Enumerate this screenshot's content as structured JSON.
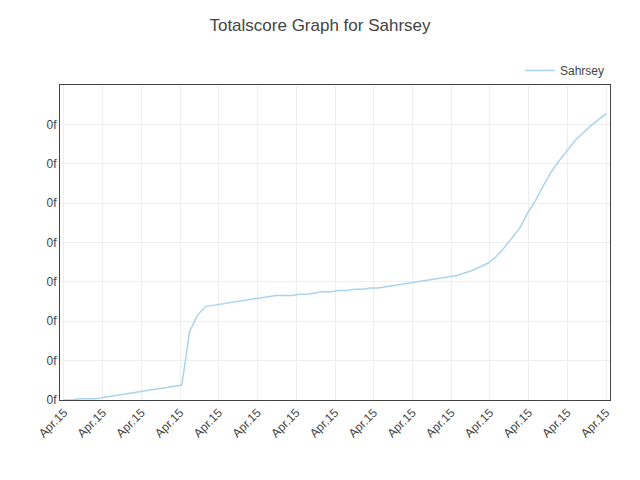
{
  "chart_data": {
    "type": "line",
    "title": "Totalscore Graph for Sahrsey",
    "x": [
      0,
      1,
      2,
      3,
      4,
      5,
      6,
      7,
      8,
      9,
      10,
      11,
      12,
      13,
      14,
      15,
      16,
      17,
      18,
      19,
      20,
      21,
      22,
      23,
      24,
      25,
      26,
      27,
      28,
      29,
      30,
      31,
      32,
      33,
      34,
      35,
      36,
      37,
      38,
      39,
      40,
      41,
      42,
      43,
      44,
      45,
      46,
      47,
      48,
      49,
      50,
      51,
      52,
      53,
      54,
      55,
      56,
      57,
      58,
      59,
      60,
      61,
      62,
      63,
      64,
      65,
      66,
      67,
      68,
      69
    ],
    "series": [
      {
        "name": "Sahrsey",
        "color": "#aad4ee",
        "values": [
          0,
          0,
          0.01,
          0.01,
          0.01,
          0.02,
          0.03,
          0.04,
          0.05,
          0.06,
          0.07,
          0.08,
          0.09,
          0.1,
          0.11,
          0.12,
          0.55,
          0.68,
          0.75,
          0.76,
          0.77,
          0.78,
          0.79,
          0.8,
          0.81,
          0.82,
          0.83,
          0.84,
          0.84,
          0.84,
          0.85,
          0.85,
          0.86,
          0.87,
          0.87,
          0.88,
          0.88,
          0.89,
          0.89,
          0.9,
          0.9,
          0.91,
          0.92,
          0.93,
          0.94,
          0.95,
          0.96,
          0.97,
          0.98,
          0.99,
          1.0,
          1.02,
          1.04,
          1.07,
          1.1,
          1.15,
          1.22,
          1.3,
          1.38,
          1.5,
          1.6,
          1.72,
          1.83,
          1.92,
          2.0,
          2.08,
          2.14,
          2.2,
          2.25,
          2.3
        ]
      }
    ],
    "xlim": [
      -0.5,
      69.5
    ],
    "xticks": [
      {
        "value": 0,
        "label": "Apr.15"
      },
      {
        "value": 4.928571428571429,
        "label": "Apr.15"
      },
      {
        "value": 9.857142857142858,
        "label": "Apr.15"
      },
      {
        "value": 14.785714285714286,
        "label": "Apr.15"
      },
      {
        "value": 19.714285714285715,
        "label": "Apr.15"
      },
      {
        "value": 24.642857142857142,
        "label": "Apr.15"
      },
      {
        "value": 29.571428571428573,
        "label": "Apr.15"
      },
      {
        "value": 34.5,
        "label": "Apr.15"
      },
      {
        "value": 39.42857142857143,
        "label": "Apr.15"
      },
      {
        "value": 44.357142857142854,
        "label": "Apr.15"
      },
      {
        "value": 49.285714285714285,
        "label": "Apr.15"
      },
      {
        "value": 54.214285714285715,
        "label": "Apr.15"
      },
      {
        "value": 59.142857142857146,
        "label": "Apr.15"
      },
      {
        "value": 64.07142857142857,
        "label": "Apr.15"
      },
      {
        "value": 69,
        "label": "Apr.15"
      }
    ],
    "ylim": [
      0,
      2.53
    ],
    "yticks": [
      {
        "value": 0,
        "label": "0f"
      },
      {
        "value": 0.31625,
        "label": "0f"
      },
      {
        "value": 0.6325,
        "label": "0f"
      },
      {
        "value": 0.94875,
        "label": "0f"
      },
      {
        "value": 1.265,
        "label": "0f"
      },
      {
        "value": 1.58125,
        "label": "0f"
      },
      {
        "value": 1.8975,
        "label": "0f"
      },
      {
        "value": 2.21375,
        "label": "0f"
      }
    ],
    "grid": true,
    "legend": "upper right"
  }
}
